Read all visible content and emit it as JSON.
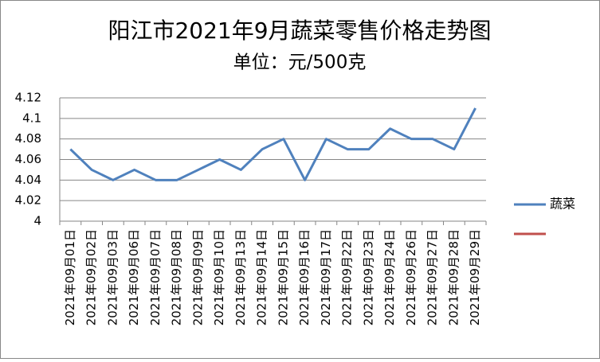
{
  "chart_data": {
    "type": "line",
    "title": "阳江市2021年9月蔬菜零售价格走势图",
    "subtitle": "单位：元/500克",
    "categories": [
      "2021年09月01日",
      "2021年09月02日",
      "2021年09月03日",
      "2021年09月06日",
      "2021年09月07日",
      "2021年09月08日",
      "2021年09月09日",
      "2021年09月10日",
      "2021年09月13日",
      "2021年09月14日",
      "2021年09月15日",
      "2021年09月16日",
      "2021年09月17日",
      "2021年09月22日",
      "2021年09月23日",
      "2021年09月24日",
      "2021年09月26日",
      "2021年09月27日",
      "2021年09月28日",
      "2021年09月29日"
    ],
    "series": [
      {
        "name": "蔬菜",
        "color": "#4f81bd",
        "values": [
          4.07,
          4.05,
          4.04,
          4.05,
          4.04,
          4.04,
          4.05,
          4.06,
          4.05,
          4.07,
          4.08,
          4.04,
          4.08,
          4.07,
          4.07,
          4.09,
          4.08,
          4.08,
          4.07,
          4.11
        ]
      },
      {
        "color": "#c0504d",
        "values": [
          null,
          null,
          null,
          null,
          null,
          null,
          null,
          null,
          null,
          null,
          null,
          null,
          null,
          null,
          null,
          null,
          null,
          null,
          null,
          null
        ]
      }
    ],
    "ylim": [
      4,
      4.12
    ],
    "yticks": [
      4,
      4.02,
      4.04,
      4.06,
      4.08,
      4.1,
      4.12
    ],
    "grid": true,
    "legend": "right"
  }
}
